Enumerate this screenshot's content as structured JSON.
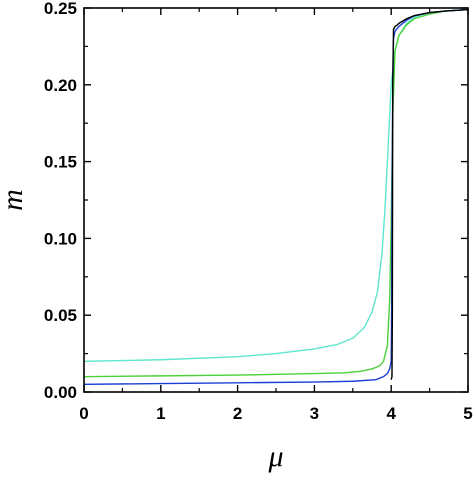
{
  "chart_data": {
    "type": "line",
    "xlabel": "μ",
    "ylabel": "m",
    "xlim": [
      0,
      5
    ],
    "ylim": [
      0,
      0.25
    ],
    "xticks": [
      "0",
      "1",
      "2",
      "3",
      "4",
      "5"
    ],
    "yticks": [
      "0.00",
      "0.05",
      "0.10",
      "0.15",
      "0.20",
      "0.25"
    ],
    "grid": false,
    "series": [
      {
        "color": "#000000",
        "x": [
          4.0,
          4.01,
          4.015,
          4.02,
          4.03,
          4.05,
          4.08,
          4.1,
          4.2,
          4.3,
          4.5,
          4.7,
          5.0
        ],
        "y": [
          0.008,
          0.01,
          0.05,
          0.2,
          0.236,
          0.238,
          0.239,
          0.24,
          0.243,
          0.245,
          0.247,
          0.248,
          0.249
        ]
      },
      {
        "color": "#1a3fd6",
        "x": [
          0.0,
          1.0,
          2.0,
          3.0,
          3.5,
          3.8,
          3.9,
          3.95,
          3.98,
          4.0,
          4.005,
          4.01,
          4.02,
          4.03,
          4.05,
          4.1,
          4.2,
          4.3,
          4.5,
          4.7,
          5.0
        ],
        "y": [
          0.005,
          0.0055,
          0.006,
          0.0065,
          0.007,
          0.008,
          0.01,
          0.012,
          0.015,
          0.02,
          0.05,
          0.12,
          0.2,
          0.23,
          0.235,
          0.238,
          0.242,
          0.245,
          0.247,
          0.248,
          0.249
        ]
      },
      {
        "color": "#4cd13a",
        "x": [
          0.0,
          1.0,
          2.0,
          3.0,
          3.4,
          3.6,
          3.75,
          3.85,
          3.9,
          3.95,
          3.98,
          4.0,
          4.02,
          4.05,
          4.1,
          4.2,
          4.3,
          4.5,
          4.7,
          5.0
        ],
        "y": [
          0.01,
          0.0105,
          0.011,
          0.012,
          0.0125,
          0.0135,
          0.015,
          0.017,
          0.02,
          0.03,
          0.06,
          0.11,
          0.18,
          0.222,
          0.232,
          0.239,
          0.243,
          0.246,
          0.248,
          0.249
        ]
      },
      {
        "color": "#5fe6cc",
        "x": [
          0.0,
          1.0,
          2.0,
          2.5,
          3.0,
          3.3,
          3.5,
          3.65,
          3.75,
          3.82,
          3.88,
          3.92,
          3.96,
          4.0,
          4.05,
          4.1,
          4.2,
          4.3,
          4.5,
          4.7,
          5.0
        ],
        "y": [
          0.02,
          0.021,
          0.023,
          0.025,
          0.028,
          0.031,
          0.035,
          0.042,
          0.052,
          0.065,
          0.09,
          0.12,
          0.16,
          0.2,
          0.222,
          0.232,
          0.24,
          0.244,
          0.247,
          0.248,
          0.249
        ]
      }
    ]
  }
}
